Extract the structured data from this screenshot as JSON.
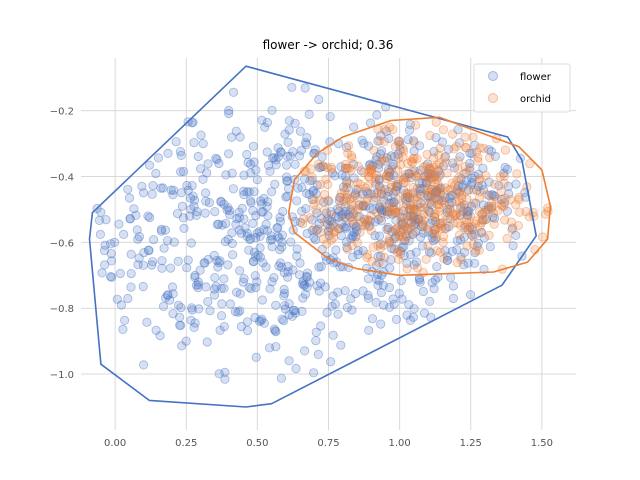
{
  "chart_data": {
    "type": "scatter",
    "title": "flower -> orchid; 0.36",
    "xlabel": "",
    "ylabel": "",
    "xlim": [
      -0.12,
      1.62
    ],
    "ylim": [
      -1.17,
      -0.04
    ],
    "xticks": [
      0.0,
      0.25,
      0.5,
      0.75,
      1.0,
      1.25,
      1.5
    ],
    "xtick_labels": [
      "0.00",
      "0.25",
      "0.50",
      "0.75",
      "1.00",
      "1.25",
      "1.50"
    ],
    "yticks": [
      -0.2,
      -0.4,
      -0.6,
      -0.8,
      -1.0
    ],
    "ytick_labels": [
      "−0.2",
      "−0.4",
      "−0.6",
      "−0.8",
      "−1.0"
    ],
    "grid": true,
    "legend_position": "top-right",
    "series": [
      {
        "name": "flower",
        "color": "#4472c4",
        "n_points": 900,
        "hull": [
          [
            0.46,
            -0.065
          ],
          [
            1.38,
            -0.28
          ],
          [
            1.43,
            -0.35
          ],
          [
            1.48,
            -0.58
          ],
          [
            1.36,
            -0.73
          ],
          [
            0.55,
            -1.09
          ],
          [
            0.46,
            -1.1
          ],
          [
            0.12,
            -1.08
          ],
          [
            -0.05,
            -0.97
          ],
          [
            -0.09,
            -0.59
          ],
          [
            -0.08,
            -0.51
          ]
        ],
        "clusters": [
          {
            "center": [
              0.55,
              -0.58
            ],
            "spread": [
              0.38,
              0.2
            ],
            "share": 0.72
          },
          {
            "center": [
              1.1,
              -0.48
            ],
            "spread": [
              0.2,
              0.1
            ],
            "share": 0.28
          }
        ]
      },
      {
        "name": "orchid",
        "color": "#ed7d31",
        "n_points": 420,
        "hull": [
          [
            0.97,
            -0.23
          ],
          [
            1.14,
            -0.22
          ],
          [
            1.42,
            -0.31
          ],
          [
            1.5,
            -0.38
          ],
          [
            1.53,
            -0.49
          ],
          [
            1.52,
            -0.59
          ],
          [
            1.45,
            -0.66
          ],
          [
            1.33,
            -0.69
          ],
          [
            1.0,
            -0.7
          ],
          [
            0.85,
            -0.68
          ],
          [
            0.75,
            -0.65
          ],
          [
            0.63,
            -0.57
          ],
          [
            0.61,
            -0.51
          ],
          [
            0.63,
            -0.41
          ],
          [
            0.71,
            -0.33
          ],
          [
            0.8,
            -0.28
          ]
        ],
        "clusters": [
          {
            "center": [
              1.07,
              -0.47
            ],
            "spread": [
              0.22,
              0.1
            ],
            "share": 1.0
          }
        ]
      }
    ]
  }
}
